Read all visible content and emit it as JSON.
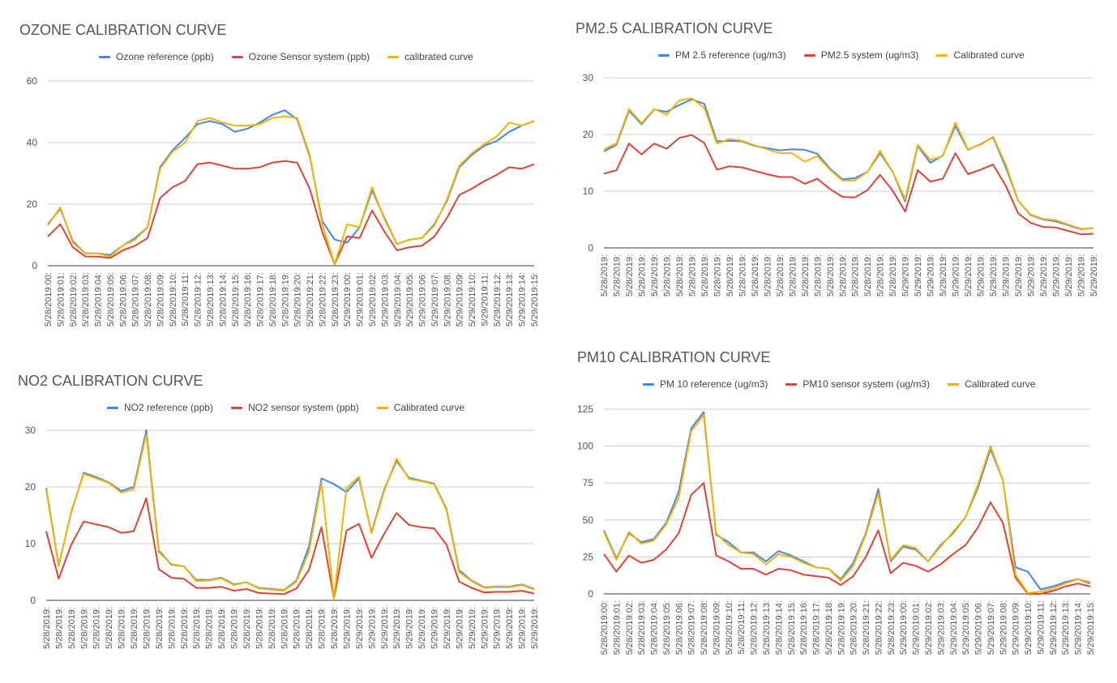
{
  "colors": {
    "reference": "#4285f4",
    "sensor": "#db4437",
    "calibrated": "#f4b400",
    "grid": "#cccccc",
    "text": "#555555"
  },
  "chart_data": [
    {
      "type": "line",
      "title": "OZONE CALIBRATION CURVE",
      "ylim": [
        0,
        60
      ],
      "yticks": [
        0,
        20,
        40,
        60
      ],
      "grid": true,
      "legend_position": "top",
      "x": [
        "5/28/2019:00:",
        "5/28/2019:01:",
        "5/28/2019:02:",
        "5/28/2019:03:",
        "5/28/2019:04:",
        "5/28/2019:05:",
        "5/28/2019:06:",
        "5/28/2019:07:",
        "5/28/2019:08:",
        "5/28/2019:09:",
        "5/28/2019:10:",
        "5/28/2019:11:",
        "5/28/2019:12:",
        "5/28/2019:13:",
        "5/28/2019:14:",
        "5/28/2019:15:",
        "5/28/2019:16:",
        "5/28/2019:17:",
        "5/28/2019:18:",
        "5/28/2019:19:",
        "5/28/2019:20:",
        "5/28/2019:21:",
        "5/28/2019:22:",
        "5/28/2019:23:",
        "5/29/2019:00:",
        "5/29/2019:01:",
        "5/29/2019:02:",
        "5/29/2019:03:",
        "5/29/2019:04:",
        "5/29/2019:05:",
        "5/29/2019:06:",
        "5/29/2019:07:",
        "5/29/2019:08:",
        "5/29/2019:09:",
        "5/29/2019:10:",
        "5/29/2019:11:",
        "5/29/2019:12:",
        "5/29/2019:13:",
        "5/29/2019:14:",
        "5/29/2019:15:"
      ],
      "series": [
        {
          "name": "Ozone reference (ppb)",
          "color_key": "reference",
          "values": [
            13.5,
            18.5,
            8,
            4,
            4,
            3.5,
            6.5,
            9,
            12.5,
            32,
            37.5,
            41.5,
            46,
            47,
            46,
            43.5,
            44.5,
            46.5,
            49,
            50.5,
            47.5,
            35.5,
            14.5,
            8.5,
            7.5,
            12.5,
            24.5,
            15.5,
            7,
            8.5,
            9,
            13.5,
            21,
            32,
            36,
            39,
            40.5,
            43.5,
            45.5,
            47
          ]
        },
        {
          "name": "Ozone Sensor system (ppb)",
          "color_key": "sensor",
          "values": [
            9.5,
            13.5,
            6,
            3,
            3,
            2.5,
            5,
            6.5,
            9,
            22,
            25.5,
            27.5,
            33,
            33.5,
            32.5,
            31.5,
            31.5,
            32,
            33.5,
            34,
            33.5,
            25,
            11,
            0.5,
            9.5,
            9,
            18,
            11,
            5,
            6,
            6.5,
            9.5,
            15.5,
            23,
            25,
            27.5,
            29.5,
            32,
            31.5,
            33
          ]
        },
        {
          "name": "calibrated curve",
          "color_key": "calibrated",
          "values": [
            13,
            19,
            7.5,
            4,
            4,
            3,
            6.5,
            8.5,
            12.5,
            31.5,
            37,
            40,
            47,
            48,
            46.5,
            45.5,
            45.5,
            46,
            48,
            48.5,
            48,
            36,
            13.5,
            0.5,
            13.5,
            12.5,
            25.5,
            15,
            7,
            8.5,
            9,
            13,
            21.5,
            32.5,
            36.5,
            39.5,
            42,
            46.5,
            45.5,
            47
          ]
        }
      ]
    },
    {
      "type": "line",
      "title": "PM2.5 CALIBRATION CURVE",
      "ylim": [
        0,
        30
      ],
      "yticks": [
        0,
        10,
        20,
        30
      ],
      "grid": true,
      "legend_position": "top",
      "x": [
        "5/28/2019:",
        "5/28/2019:",
        "5/28/2019:",
        "5/28/2019:",
        "5/28/2019:",
        "5/28/2019:",
        "5/28/2019:",
        "5/28/2019:",
        "5/28/2019:",
        "5/28/2019:",
        "5/28/2019:",
        "5/28/2019:",
        "5/28/2019:",
        "5/28/2019:",
        "5/28/2019:",
        "5/28/2019:",
        "5/28/2019:",
        "5/28/2019:",
        "5/28/2019:",
        "5/28/2019:",
        "5/28/2019:",
        "5/28/2019:",
        "5/28/2019:",
        "5/28/2019:",
        "5/29/2019:",
        "5/29/2019:",
        "5/29/2019:",
        "5/29/2019:",
        "5/29/2019:",
        "5/29/2019:",
        "5/29/2019:",
        "5/29/2019:",
        "5/29/2019:",
        "5/29/2019:",
        "5/29/2019:",
        "5/29/2019:",
        "5/29/2019:",
        "5/29/2019:",
        "5/29/2019:",
        "5/29/2019:"
      ],
      "series": [
        {
          "name": "PM 2.5 reference (ug/m3)",
          "color_key": "reference",
          "values": [
            17,
            18.2,
            24.2,
            21.8,
            24.4,
            24,
            25.2,
            26.2,
            25.4,
            18.8,
            18.9,
            18.8,
            18,
            17.6,
            17.2,
            17.4,
            17.3,
            16.6,
            14,
            12.1,
            12.3,
            13.4,
            16.7,
            13.4,
            8.2,
            18,
            15,
            16.3,
            21.5,
            17.3,
            18.3,
            19.5,
            14.3,
            8.3,
            5.8,
            5,
            4.7,
            4,
            3.3,
            3.5
          ]
        },
        {
          "name": "PM2.5 system (ug/m3)",
          "color_key": "sensor",
          "values": [
            13.1,
            13.7,
            18.4,
            16.5,
            18.4,
            17.5,
            19.4,
            19.9,
            18.5,
            13.8,
            14.4,
            14.2,
            13.6,
            13,
            12.5,
            12.5,
            11.3,
            12.2,
            10.4,
            9,
            8.9,
            10.2,
            12.9,
            10.1,
            6.4,
            13.7,
            11.7,
            12.2,
            16.7,
            13,
            13.8,
            14.7,
            11,
            6.1,
            4.4,
            3.7,
            3.6,
            3,
            2.4,
            2.5
          ]
        },
        {
          "name": "Calibrated curve",
          "color_key": "calibrated",
          "values": [
            17.4,
            18.4,
            24.5,
            22,
            24.5,
            23.5,
            26,
            26.4,
            24.7,
            18.4,
            19.2,
            18.9,
            18.1,
            17.4,
            16.7,
            16.7,
            15.2,
            16.2,
            13.8,
            11.9,
            11.9,
            13.4,
            17.1,
            13.4,
            8.6,
            18.2,
            15.5,
            16.2,
            22.1,
            17.4,
            18.2,
            19.6,
            14.8,
            8.3,
            5.9,
            5.1,
            4.9,
            4.1,
            3.4,
            3.5
          ]
        }
      ]
    },
    {
      "type": "line",
      "title": "NO2 CALIBRATION CURVE",
      "ylim": [
        0,
        30
      ],
      "yticks": [
        0,
        10,
        20,
        30
      ],
      "grid": true,
      "legend_position": "top",
      "x": [
        "5/28/2019:",
        "5/28/2019:",
        "5/28/2019:",
        "5/28/2019:",
        "5/28/2019:",
        "5/28/2019:",
        "5/28/2019:",
        "5/28/2019:",
        "5/28/2019:",
        "5/28/2019:",
        "5/28/2019:",
        "5/28/2019:",
        "5/28/2019:",
        "5/28/2019:",
        "5/28/2019:",
        "5/28/2019:",
        "5/28/2019:",
        "5/28/2019:",
        "5/28/2019:",
        "5/28/2019:",
        "5/28/2019:",
        "5/28/2019:",
        "5/28/2019:",
        "5/28/2019:",
        "5/29/2019:",
        "5/29/2019:",
        "5/29/2019:",
        "5/29/2019:",
        "5/29/2019:",
        "5/29/2019:",
        "5/29/2019:",
        "5/29/2019:",
        "5/29/2019:",
        "5/29/2019:",
        "5/29/2019:",
        "5/29/2019:",
        "5/29/2019:",
        "5/29/2019:",
        "5/29/2019:",
        "5/29/2019:"
      ],
      "series": [
        {
          "name": "NO2 reference (ppb)",
          "color_key": "reference",
          "values": [
            19.8,
            6.2,
            15.5,
            22.5,
            21.7,
            20.8,
            19.3,
            20,
            30,
            8.8,
            6.3,
            6,
            3.6,
            3.6,
            4,
            2.8,
            3.2,
            2.2,
            2,
            1.8,
            3.5,
            9.5,
            21.5,
            20.5,
            19.1,
            21.5,
            12,
            19.5,
            24.6,
            21.6,
            21.1,
            20.6,
            16.1,
            5.3,
            3.5,
            2.3,
            2.4,
            2.4,
            2.8,
            2
          ]
        },
        {
          "name": "NO2 sensor system (ppb)",
          "color_key": "sensor",
          "values": [
            12.2,
            3.8,
            9.8,
            13.9,
            13.4,
            12.9,
            11.9,
            12.2,
            18,
            5.5,
            4,
            3.8,
            2.2,
            2.2,
            2.4,
            1.7,
            2,
            1.3,
            1.2,
            1.1,
            2.1,
            5.4,
            12.9,
            0.3,
            12.3,
            13.5,
            7.5,
            11.7,
            15.4,
            13.3,
            12.9,
            12.7,
            9.8,
            3.3,
            2.2,
            1.4,
            1.5,
            1.5,
            1.7,
            1.2
          ]
        },
        {
          "name": "Calibrated curve",
          "color_key": "calibrated",
          "values": [
            19.5,
            6,
            15.7,
            22.3,
            21.5,
            20.7,
            19,
            19.6,
            29.3,
            8.5,
            6.4,
            6,
            3.4,
            3.5,
            3.9,
            2.7,
            3.2,
            2.1,
            1.9,
            1.7,
            3.3,
            8.6,
            20.8,
            0.3,
            19.8,
            21.8,
            11.8,
            19.2,
            25,
            21.4,
            21,
            20.5,
            15.9,
            5,
            3.4,
            2.2,
            2.3,
            2.3,
            2.7,
            1.9
          ]
        }
      ]
    },
    {
      "type": "line",
      "title": "PM10 CALIBRATION CURVE",
      "ylim": [
        0,
        125
      ],
      "yticks": [
        0,
        25,
        50,
        75,
        100,
        125
      ],
      "grid": true,
      "legend_position": "top",
      "x": [
        "5/28/2019:00:",
        "5/28/2019:01:",
        "5/28/2019:02:",
        "5/28/2019:03:",
        "5/28/2019:04:",
        "5/28/2019:05:",
        "5/28/2019:06:",
        "5/28/2019:07:",
        "5/28/2019:08:",
        "5/28/2019:09:",
        "5/28/2019:10:",
        "5/28/2019:11:",
        "5/28/2019:12:",
        "5/28/2019:13:",
        "5/28/2019:14:",
        "5/28/2019:15:",
        "5/28/2019:16:",
        "5/28/2019:17:",
        "5/28/2019:18:",
        "5/28/2019:19:",
        "5/28/2019:20:",
        "5/28/2019:21:",
        "5/28/2019:22:",
        "5/28/2019:23:",
        "5/29/2019:00:",
        "5/29/2019:01:",
        "5/29/2019:02:",
        "5/29/2019:03:",
        "5/29/2019:04:",
        "5/29/2019:05:",
        "5/29/2019:06:",
        "5/29/2019:07:",
        "5/29/2019:08:",
        "5/29/2019:09:",
        "5/29/2019:10:",
        "5/29/2019:11:",
        "5/29/2019:12:",
        "5/29/2019:13:",
        "5/29/2019:14:",
        "5/29/2019:15:"
      ],
      "series": [
        {
          "name": "PM 10 reference (ug/m3)",
          "color_key": "reference",
          "values": [
            43,
            24,
            41,
            35,
            37,
            48,
            69,
            112,
            123,
            40,
            35,
            28,
            28,
            22,
            29,
            26,
            22,
            18,
            17,
            10,
            21,
            41,
            71,
            22,
            32,
            30,
            22,
            33,
            41,
            52,
            72,
            98,
            77,
            18,
            15,
            3,
            5,
            8,
            10,
            7
          ]
        },
        {
          "name": "PM10 sensor system (ug/m3)",
          "color_key": "sensor",
          "values": [
            27,
            15,
            26,
            21,
            23,
            30,
            41,
            67,
            75,
            26,
            22,
            17,
            17,
            13,
            17,
            16,
            13,
            12,
            11,
            6,
            12,
            25,
            43,
            14,
            21,
            19,
            15,
            20,
            27,
            33,
            45,
            62,
            48,
            11,
            0,
            0,
            2,
            5,
            7,
            5
          ]
        },
        {
          "name": "Calibrated curve",
          "color_key": "calibrated",
          "values": [
            42,
            23,
            42,
            34,
            36,
            47,
            65,
            110,
            121,
            41,
            33,
            28,
            27,
            20,
            27,
            25,
            21,
            18,
            17,
            9,
            19,
            40,
            68,
            23,
            33,
            31,
            22,
            32,
            42,
            52,
            74,
            100,
            77,
            13,
            0.5,
            1.5,
            3.5,
            7,
            10,
            8
          ]
        }
      ]
    }
  ]
}
